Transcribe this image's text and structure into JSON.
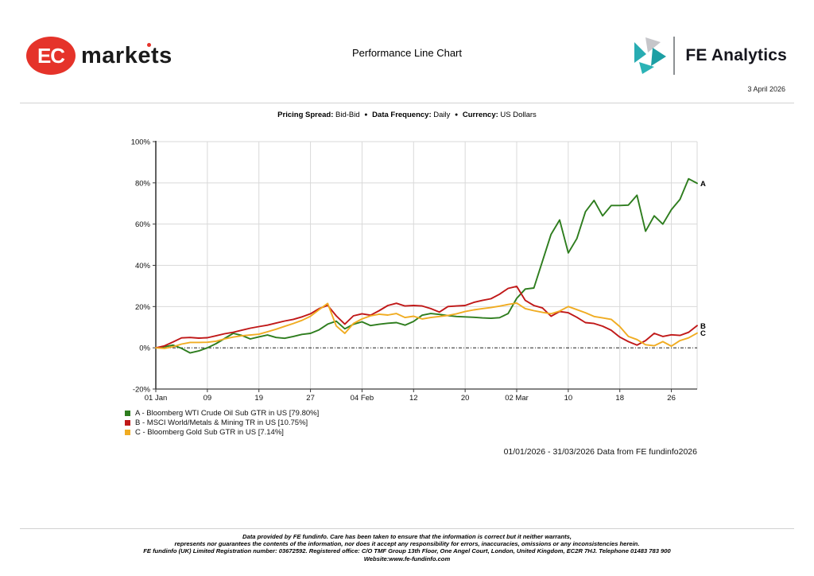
{
  "header": {
    "title": "Performance Line Chart",
    "date": "3 April 2026",
    "ec_logo": {
      "badge": "EC",
      "word": "markets",
      "color": "#e5332a"
    },
    "fe_logo": {
      "text": "FE Analytics",
      "icon_colors": [
        "#c6c6ca",
        "#28acb2",
        "#1d9fa4",
        "#2bb3b6"
      ]
    }
  },
  "meta": {
    "separator": "●",
    "items": [
      {
        "label": "Pricing Spread:",
        "value": "Bid-Bid"
      },
      {
        "label": "Data Frequency:",
        "value": "Daily"
      },
      {
        "label": "Currency:",
        "value": "US Dollars"
      }
    ]
  },
  "chart_data": {
    "type": "line",
    "title": "Performance Line Chart",
    "x_axis": "trading days 01/01/2026 - 31/03/2026",
    "x_tick_labels": [
      "01 Jan",
      "09",
      "19",
      "27",
      "04 Feb",
      "12",
      "20",
      "02 Mar",
      "10",
      "18",
      "26"
    ],
    "x_tick_indices": [
      0,
      6,
      12,
      18,
      24,
      30,
      36,
      42,
      48,
      54,
      60
    ],
    "n_points": 64,
    "ylim": [
      -20,
      100
    ],
    "y_ticks": [
      100,
      80,
      60,
      40,
      20,
      0,
      -20
    ],
    "y_tick_labels": [
      "100%",
      "80%",
      "60%",
      "40%",
      "20%",
      "0%",
      "-20%"
    ],
    "grid": true,
    "legend_position": "bottom-left",
    "series": [
      {
        "letter": "A",
        "name": "Bloomberg WTI Crude Oil Sub GTR in US",
        "final": "79.80%",
        "color": "#2e7d1e",
        "legend_label": "A - Bloomberg WTI Crude Oil Sub GTR in US [79.80%]",
        "values": [
          0,
          0.5,
          1.3,
          -0.3,
          -2.5,
          -1.5,
          0,
          2,
          4.5,
          7,
          6,
          4.3,
          5.3,
          6.2,
          5,
          4.6,
          5.5,
          6.5,
          7,
          8.7,
          11.5,
          12.9,
          9.2,
          11.4,
          12.6,
          10.8,
          11.4,
          11.9,
          12.2,
          11,
          12.8,
          15.8,
          16.6,
          16.2,
          15.6,
          15.2,
          15,
          14.8,
          14.5,
          14.3,
          14.6,
          16.6,
          24,
          28.5,
          29,
          42,
          55,
          62,
          46,
          53,
          66,
          71.5,
          64,
          69,
          69,
          69.2,
          74,
          56.5,
          64,
          60,
          67,
          72,
          82,
          79.8
        ]
      },
      {
        "letter": "B",
        "name": "MSCI World/Metals & Mining TR in US",
        "final": "10.75%",
        "color": "#c01818",
        "legend_label": "B - MSCI World/Metals & Mining TR in US [10.75%]",
        "values": [
          0,
          0.9,
          2.8,
          4.8,
          5,
          4.7,
          4.9,
          5.8,
          6.8,
          7.5,
          8.5,
          9.5,
          10.3,
          11,
          12,
          13,
          13.8,
          15,
          16.5,
          19,
          20.6,
          15.5,
          11.5,
          15.5,
          16.5,
          15.8,
          18,
          20.5,
          21.6,
          20.3,
          20.5,
          20.3,
          19,
          17.3,
          20,
          20.3,
          20.5,
          22,
          23,
          23.8,
          26,
          28.8,
          29.8,
          23,
          20.5,
          19.3,
          15.3,
          17.6,
          17,
          14.8,
          12.2,
          11.8,
          10.5,
          8.5,
          5.2,
          3,
          1.3,
          3.5,
          7,
          5.5,
          6.3,
          6,
          7.5,
          10.75
        ]
      },
      {
        "letter": "C",
        "name": "Bloomberg Gold Sub GTR in US",
        "final": "7.14%",
        "color": "#f0ac22",
        "legend_label": "C - Bloomberg Gold Sub GTR in US [7.14%]",
        "values": [
          0,
          -0.3,
          0.5,
          1.8,
          2.6,
          2.6,
          2.7,
          3.2,
          4.3,
          5.2,
          5.8,
          6.2,
          6.6,
          7.8,
          9,
          10.4,
          11.8,
          13.3,
          15.3,
          18.5,
          21.5,
          10.6,
          7,
          11.8,
          14,
          15.5,
          16.3,
          15.9,
          16.6,
          14.7,
          15.3,
          14,
          14.7,
          15.2,
          15.7,
          16.5,
          17.6,
          18.4,
          19,
          19.5,
          20.2,
          21,
          21.7,
          19,
          18,
          17.2,
          16.5,
          17.8,
          20,
          18.5,
          17,
          15.2,
          14.5,
          13.8,
          10.3,
          5.5,
          4,
          1.5,
          1,
          3,
          0.8,
          3.5,
          4.8,
          7.14
        ]
      }
    ]
  },
  "range_note": "01/01/2026 - 31/03/2026 Data from FE fundinfo2026",
  "footer": {
    "lines": [
      "Data provided by FE fundinfo. Care has been taken to ensure that the information is correct but it neither warrants,",
      "represents nor guarantees the contents of the information, nor does it accept any responsibility for errors, inaccuracies, omissions or any inconsistencies herein.",
      "FE fundinfo (UK) Limited Registration number: 03672592. Registered office: C/O TMF Group 13th Floor, One Angel Court, London, United Kingdom, EC2R 7HJ. Telephone 01483 783 900",
      "Website:www.fe-fundinfo.com"
    ]
  }
}
